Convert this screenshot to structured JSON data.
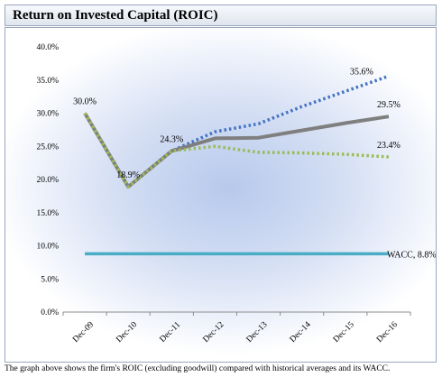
{
  "title": "Return on Invested Capital (ROIC)",
  "caption": "The graph above shows the firm's ROIC (excluding goodwill) compared with historical averages and its WACC.",
  "chart_data": {
    "type": "line",
    "title": "",
    "xlabel": "",
    "ylabel": "",
    "categories": [
      "Dec-09",
      "Dec-10",
      "Dec-11",
      "Dec-12",
      "Dec-13",
      "Dec-14",
      "Dec-15",
      "Dec-16"
    ],
    "y_ticks": [
      "0.0%",
      "5.0%",
      "10.0%",
      "15.0%",
      "20.0%",
      "25.0%",
      "30.0%",
      "35.0%",
      "40.0%"
    ],
    "ylim": [
      0,
      40
    ],
    "grid": false,
    "legend": "none",
    "series": [
      {
        "values": [
          30.0,
          18.9,
          24.3,
          27.2,
          28.4,
          31.0,
          33.3,
          35.6
        ],
        "color": "#4472c4",
        "style": "dotted"
      },
      {
        "values": [
          30.0,
          18.9,
          24.3,
          26.2,
          26.3,
          27.4,
          28.5,
          29.5
        ],
        "color": "#7f7f7f",
        "style": "solid"
      },
      {
        "values": [
          30.0,
          18.9,
          24.3,
          25.0,
          24.1,
          24.0,
          23.8,
          23.4
        ],
        "color": "#9bbb59",
        "style": "dotted"
      },
      {
        "values": [
          8.8,
          8.8,
          8.8,
          8.8,
          8.8,
          8.8,
          8.8,
          8.8
        ],
        "color": "#4bacc6",
        "style": "solid"
      }
    ],
    "data_labels": [
      {
        "text": "30.0%",
        "x": "Dec-09",
        "y": 30.0,
        "position": "above"
      },
      {
        "text": "18.9%",
        "x": "Dec-10",
        "y": 18.9,
        "position": "above"
      },
      {
        "text": "24.3%",
        "x": "Dec-11",
        "y": 24.3,
        "position": "above"
      },
      {
        "text": "35.6%",
        "x": "Dec-16",
        "y": 35.6,
        "position": "left"
      },
      {
        "text": "29.5%",
        "x": "Dec-16",
        "y": 29.5,
        "position": "above"
      },
      {
        "text": "23.4%",
        "x": "Dec-16",
        "y": 23.4,
        "position": "above"
      },
      {
        "text": "WACC, 8.8%",
        "x": "Dec-16",
        "y": 8.8,
        "position": "right"
      }
    ]
  }
}
